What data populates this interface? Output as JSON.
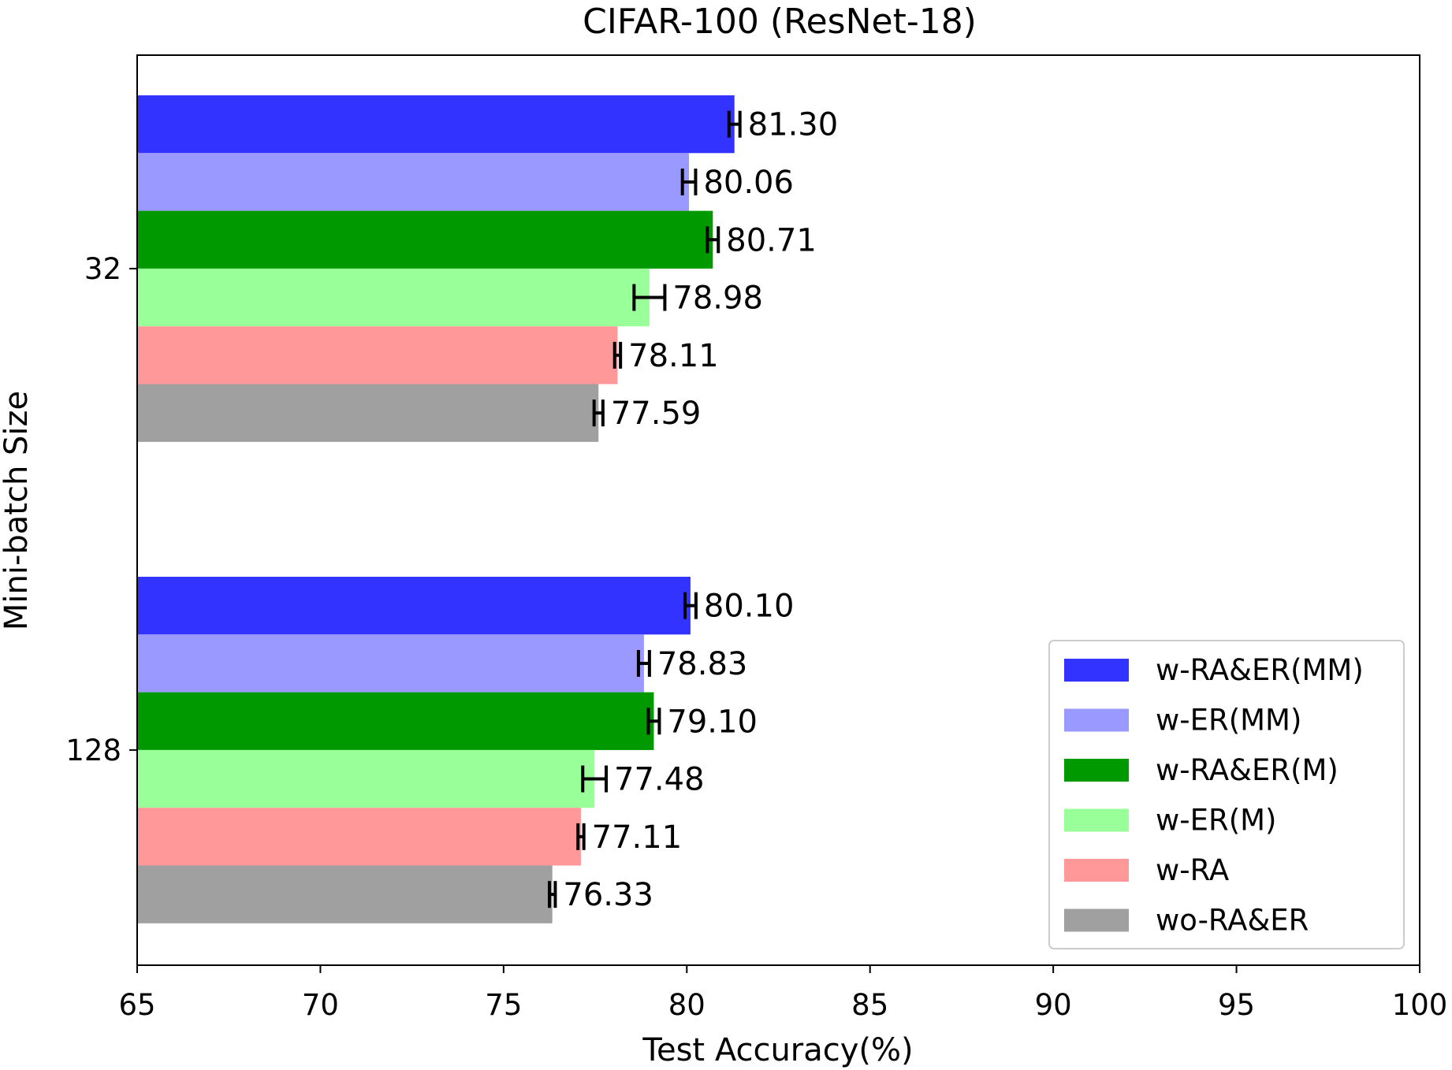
{
  "chart_data": {
    "type": "bar",
    "orientation": "horizontal",
    "title": "CIFAR-100 (ResNet-18)",
    "xlabel": "Test Accuracy(%)",
    "ylabel": "Mini-batch Size",
    "xlim": [
      65,
      100
    ],
    "xticks": [
      "65",
      "70",
      "75",
      "80",
      "85",
      "90",
      "95",
      "100"
    ],
    "categories": [
      "32",
      "128"
    ],
    "grid": false,
    "legend_position": "lower-right",
    "series": [
      {
        "name": "w-RA&ER(MM)",
        "color": "#3333ff",
        "values": [
          81.3,
          80.1
        ],
        "labels": [
          "81.30",
          "80.10"
        ],
        "error": [
          0.15,
          0.15
        ]
      },
      {
        "name": "w-ER(MM)",
        "color": "#9999ff",
        "values": [
          80.06,
          78.83
        ],
        "labels": [
          "80.06",
          "78.83"
        ],
        "error": [
          0.18,
          0.15
        ]
      },
      {
        "name": "w-RA&ER(M)",
        "color": "#009900",
        "values": [
          80.71,
          79.1
        ],
        "labels": [
          "80.71",
          "79.10"
        ],
        "error": [
          0.15,
          0.15
        ]
      },
      {
        "name": "w-ER(M)",
        "color": "#99ff99",
        "values": [
          78.98,
          77.48
        ],
        "labels": [
          "78.98",
          "77.48"
        ],
        "error": [
          0.42,
          0.32
        ]
      },
      {
        "name": "w-RA",
        "color": "#ff9999",
        "values": [
          78.11,
          77.11
        ],
        "labels": [
          "78.11",
          "77.11"
        ],
        "error": [
          0.08,
          0.08
        ]
      },
      {
        "name": "wo-RA&ER",
        "color": "#a0a0a0",
        "values": [
          77.59,
          76.33
        ],
        "labels": [
          "77.59",
          "76.33"
        ],
        "error": [
          0.12,
          0.08
        ]
      }
    ]
  }
}
